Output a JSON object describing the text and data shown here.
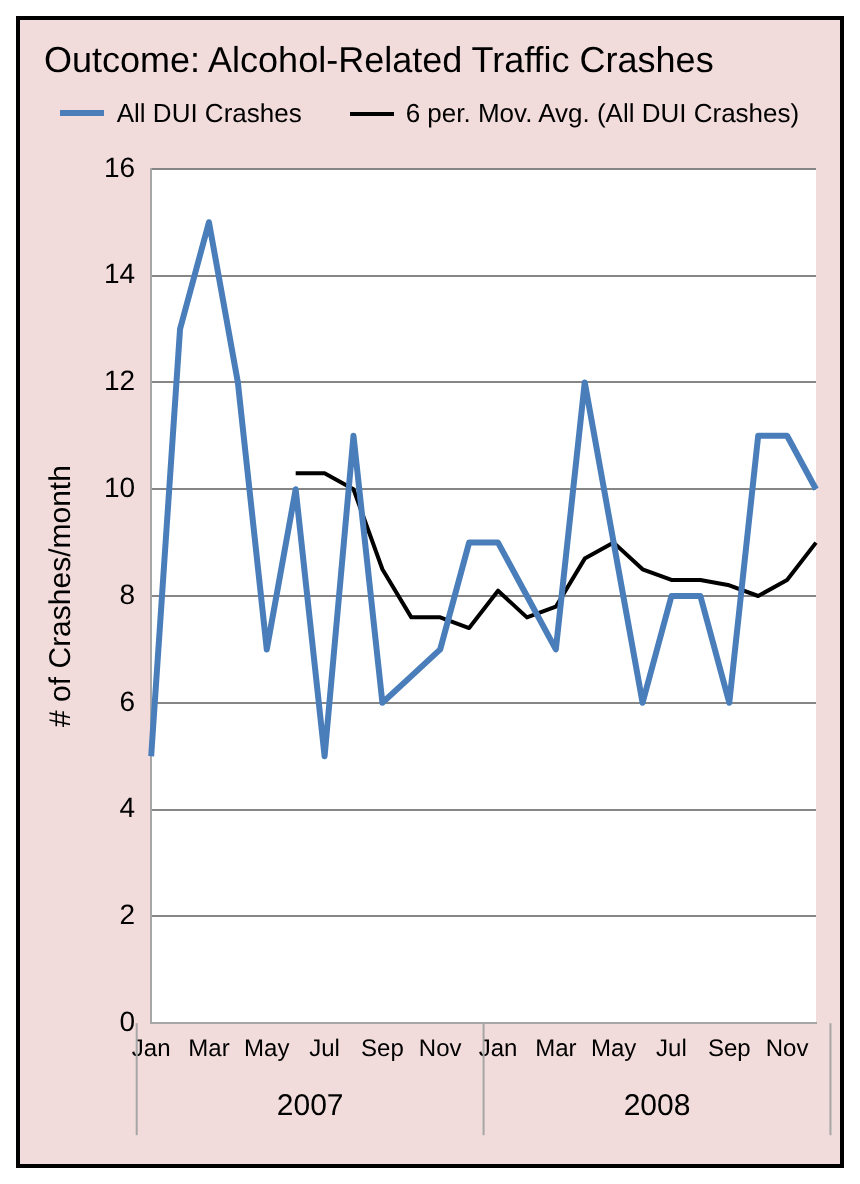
{
  "chart_data": {
    "type": "line",
    "title": "Outcome: Alcohol-Related Traffic Crashes",
    "ylabel": "# of Crashes/month",
    "categories": [
      "Jan",
      null,
      "Mar",
      null,
      "May",
      null,
      "Jul",
      null,
      "Sep",
      null,
      "Nov",
      null,
      "Jan",
      null,
      "Mar",
      null,
      "May",
      null,
      "Jul",
      null,
      "Sep",
      null,
      "Nov",
      null
    ],
    "series": [
      {
        "name": "All DUI Crashes",
        "color": "#4a7ebb",
        "values": [
          5,
          13,
          15,
          12,
          7,
          10,
          5,
          11,
          6,
          6.5,
          7,
          9,
          9,
          8,
          7,
          12,
          9,
          6,
          8,
          8,
          6,
          11,
          11,
          10
        ]
      },
      {
        "name": "6 per. Mov. Avg. (All DUI Crashes)",
        "color": "#000000",
        "values": [
          null,
          null,
          null,
          null,
          null,
          10.3,
          10.3,
          10.0,
          8.5,
          7.6,
          7.6,
          7.4,
          8.1,
          7.6,
          7.8,
          8.7,
          9.0,
          8.5,
          8.3,
          8.3,
          8.2,
          8.0,
          8.3,
          9.0
        ]
      }
    ],
    "annotations": [
      "2007",
      "2008"
    ],
    "ylim": [
      0,
      16
    ],
    "yticks": [
      0,
      2,
      4,
      6,
      8,
      10,
      12,
      14,
      16
    ],
    "grid": "y",
    "legend": "top",
    "marker": "none",
    "line_style": "solid"
  }
}
